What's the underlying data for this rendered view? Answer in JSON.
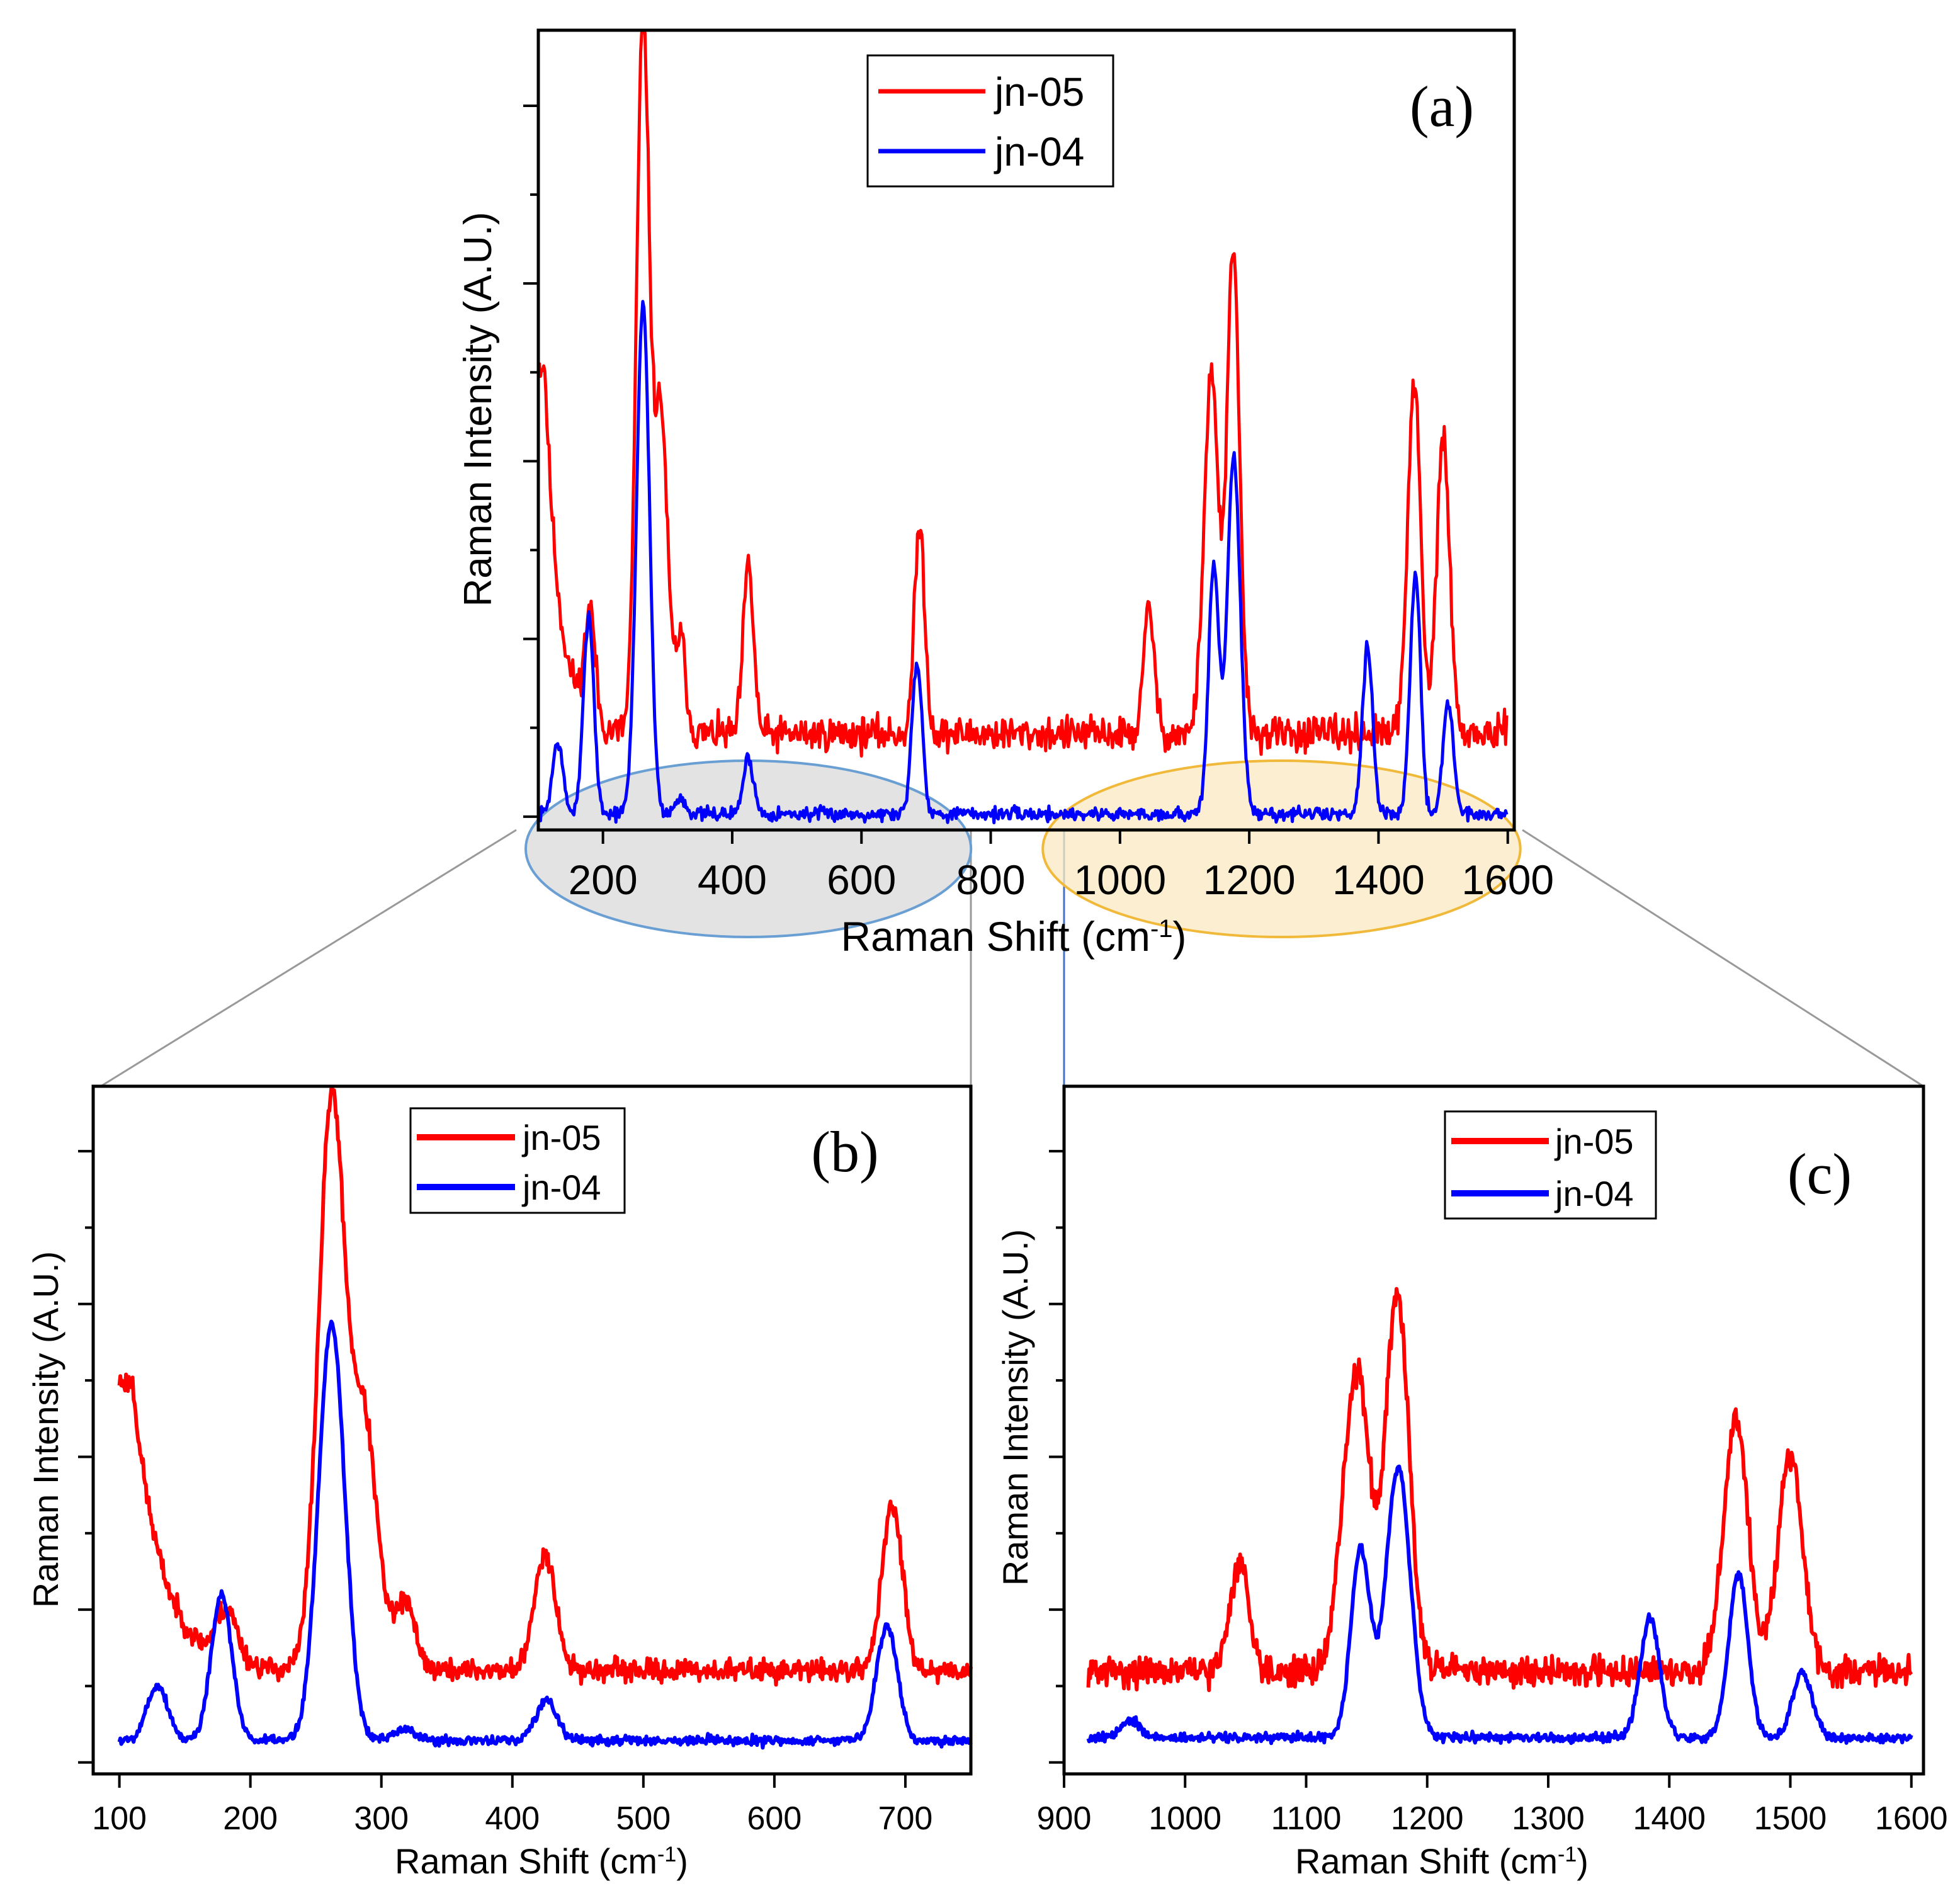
{
  "figure": {
    "panels": [
      "a",
      "b",
      "c"
    ]
  },
  "chart_data": [
    {
      "id": "a",
      "type": "line",
      "panel_label": "(a)",
      "xlabel": "Raman Shift (cm",
      "xlabel_sup": "-1",
      "xlabel_tail": ")",
      "ylabel": "Raman Intensity (A.U.)",
      "xlim": [
        100,
        1610
      ],
      "ylim": [
        0,
        100
      ],
      "xticks": [
        200,
        400,
        600,
        800,
        1000,
        1200,
        1400,
        1600
      ],
      "legend": {
        "position": "top-center",
        "entries": [
          "jn-05",
          "jn-04"
        ]
      },
      "highlights": [
        {
          "name": "low-region",
          "x_range": [
            100,
            750
          ],
          "color": "#6a9fd4"
        },
        {
          "name": "high-region",
          "x_range": [
            900,
            1600
          ],
          "color": "#f0b93a"
        }
      ],
      "series": [
        {
          "name": "jn-05",
          "color": "#ff0000",
          "baseline": 12,
          "noise": 3.2,
          "seed": 11,
          "points": [
            [
              110,
              58
            ],
            [
              160,
              13
            ],
            [
              180,
              26
            ],
            [
              262,
              102
            ],
            [
              290,
              52
            ],
            [
              320,
              24
            ],
            [
              425,
              33
            ],
            [
              690,
              38
            ],
            [
              1045,
              28
            ],
            [
              1137,
              44
            ],
            [
              1147,
              32
            ],
            [
              1175,
              72
            ],
            [
              1385,
              12
            ],
            [
              1455,
              56
            ],
            [
              1500,
              49
            ]
          ]
        },
        {
          "name": "jn-04",
          "color": "#0000ff",
          "baseline": 2,
          "noise": 1.3,
          "seed": 7,
          "points": [
            [
              130,
              11
            ],
            [
              178,
              27
            ],
            [
              262,
              66
            ],
            [
              320,
              4
            ],
            [
              425,
              9
            ],
            [
              686,
              21
            ],
            [
              1145,
              33
            ],
            [
              1176,
              47
            ],
            [
              1383,
              23
            ],
            [
              1457,
              32
            ],
            [
              1508,
              16
            ]
          ]
        }
      ]
    },
    {
      "id": "b",
      "type": "line",
      "panel_label": "(b)",
      "xlabel": "Raman Shift (cm",
      "xlabel_sup": "-1",
      "xlabel_tail": ")",
      "ylabel": "Raman Intensity (A.U.)",
      "xlim": [
        80,
        750
      ],
      "ylim": [
        -3,
        90
      ],
      "xticks": [
        100,
        200,
        300,
        400,
        500,
        600,
        700
      ],
      "legend": {
        "position": "top-center",
        "entries": [
          "jn-05",
          "jn-04"
        ]
      },
      "series": [
        {
          "name": "jn-05",
          "color": "#ff0000",
          "baseline": 11,
          "noise": 2.2,
          "seed": 23,
          "points": [
            [
              110,
              50
            ],
            [
              150,
              8
            ],
            [
              182,
              18
            ],
            [
              262,
              88
            ],
            [
              287,
              44
            ],
            [
              318,
              20
            ],
            [
              425,
              27
            ],
            [
              690,
              33
            ]
          ]
        },
        {
          "name": "jn-04",
          "color": "#0000ff",
          "baseline": 1.5,
          "noise": 1.0,
          "seed": 5,
          "points": [
            [
              129,
              9
            ],
            [
              178,
              21
            ],
            [
              262,
              58
            ],
            [
              318,
              3
            ],
            [
              426,
              7
            ],
            [
              686,
              17
            ]
          ]
        }
      ]
    },
    {
      "id": "c",
      "type": "line",
      "panel_label": "(c)",
      "xlabel": "Raman Shift (cm",
      "xlabel_sup": "-1",
      "xlabel_tail": ")",
      "ylabel": "Raman Intensity (A.U.)",
      "xlim": [
        900,
        1610
      ],
      "ylim": [
        -4,
        110
      ],
      "xticks": [
        900,
        1000,
        1100,
        1200,
        1300,
        1400,
        1500,
        1600
      ],
      "legend": {
        "position": "top-center",
        "entries": [
          "jn-05",
          "jn-04"
        ]
      },
      "series": [
        {
          "name": "jn-05",
          "color": "#ff0000",
          "baseline": 13,
          "noise": 3.6,
          "seed": 31,
          "points": [
            [
              1045,
              31
            ],
            [
              1137,
              47
            ],
            [
              1147,
              37
            ],
            [
              1175,
              76
            ],
            [
              1455,
              55
            ],
            [
              1500,
              49
            ]
          ]
        },
        {
          "name": "jn-04",
          "color": "#0000ff",
          "baseline": 2,
          "noise": 1.2,
          "seed": 9,
          "points": [
            [
              955,
              5
            ],
            [
              1145,
              33
            ],
            [
              1176,
              47
            ],
            [
              1384,
              22
            ],
            [
              1457,
              29
            ],
            [
              1510,
              13
            ]
          ]
        }
      ]
    }
  ]
}
